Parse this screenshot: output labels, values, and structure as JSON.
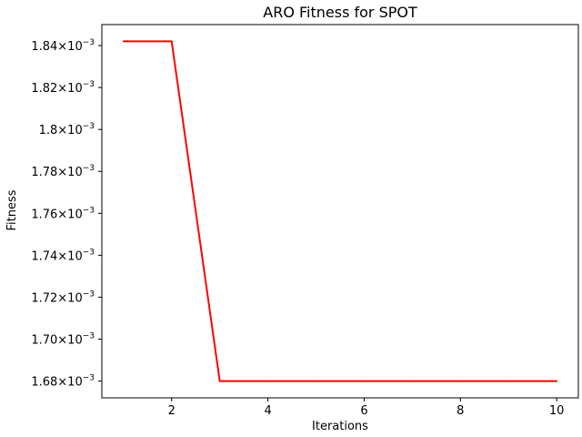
{
  "chart_data": {
    "type": "line",
    "title": "ARO Fitness for SPOT",
    "xlabel": "Iterations",
    "ylabel": "Fitness",
    "x": [
      1,
      2,
      3,
      4,
      5,
      6,
      7,
      8,
      9,
      10
    ],
    "series": [
      {
        "values": [
          0.001842,
          0.001842,
          0.00168,
          0.00168,
          0.00168,
          0.00168,
          0.00168,
          0.00168,
          0.00168,
          0.00168
        ],
        "color": "#ff0000"
      }
    ],
    "xlim": [
      0.55,
      10.45
    ],
    "ylim": [
      0.001672,
      0.00185
    ],
    "grid": false,
    "x_ticks": [
      {
        "value": 2,
        "label": "2"
      },
      {
        "value": 4,
        "label": "4"
      },
      {
        "value": 6,
        "label": "6"
      },
      {
        "value": 8,
        "label": "8"
      },
      {
        "value": 10,
        "label": "10"
      }
    ],
    "y_ticks": [
      {
        "value": 0.00168,
        "mantissa": "1.68",
        "base": "10",
        "exponent": "−3"
      },
      {
        "value": 0.0017,
        "mantissa": "1.70",
        "base": "10",
        "exponent": "−3"
      },
      {
        "value": 0.00172,
        "mantissa": "1.72",
        "base": "10",
        "exponent": "−3"
      },
      {
        "value": 0.00174,
        "mantissa": "1.74",
        "base": "10",
        "exponent": "−3"
      },
      {
        "value": 0.00176,
        "mantissa": "1.76",
        "base": "10",
        "exponent": "−3"
      },
      {
        "value": 0.00178,
        "mantissa": "1.78",
        "base": "10",
        "exponent": "−3"
      },
      {
        "value": 0.0018,
        "mantissa": "1.8",
        "base": "10",
        "exponent": "−3"
      },
      {
        "value": 0.00182,
        "mantissa": "1.82",
        "base": "10",
        "exponent": "−3"
      },
      {
        "value": 0.00184,
        "mantissa": "1.84",
        "base": "10",
        "exponent": "−3"
      }
    ]
  }
}
